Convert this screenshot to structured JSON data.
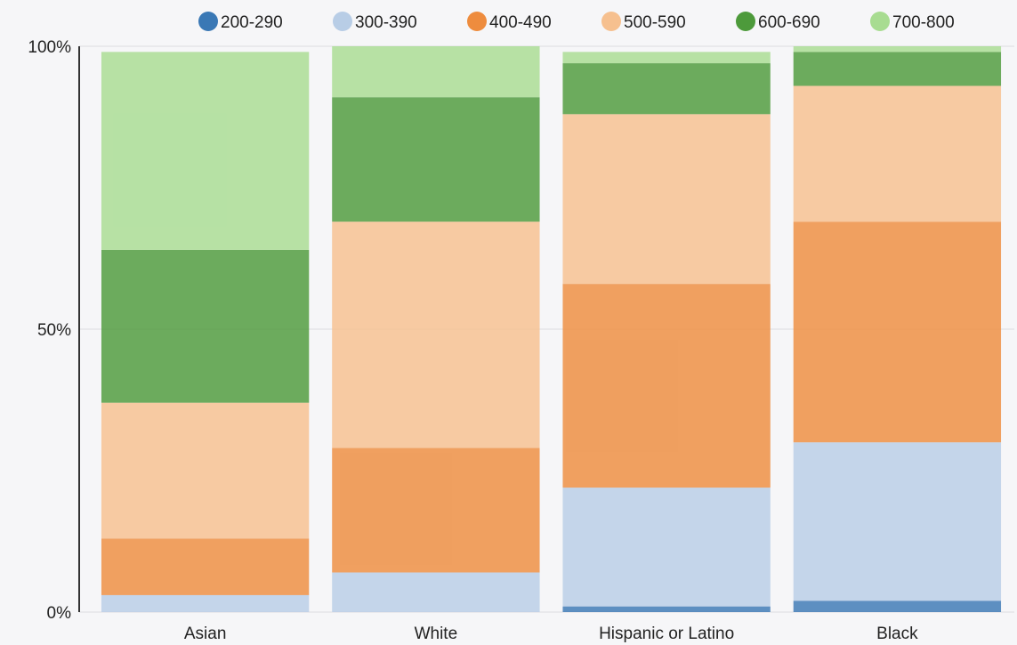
{
  "chart_data": {
    "type": "bar",
    "stacked": true,
    "normalized": true,
    "title": "",
    "xlabel": "",
    "ylabel": "",
    "ylim": [
      0,
      100
    ],
    "yticks": [
      "0%",
      "50%",
      "100%"
    ],
    "grid": true,
    "legend_position": "top",
    "categories": [
      "Asian",
      "White",
      "Hispanic or Latino",
      "Black"
    ],
    "series": [
      {
        "name": "200-290",
        "color": "#3a78b5",
        "values": [
          0,
          0,
          1,
          2
        ]
      },
      {
        "name": "300-390",
        "color": "#b8cde6",
        "values": [
          3,
          7,
          21,
          28
        ]
      },
      {
        "name": "400-490",
        "color": "#ee8c3e",
        "values": [
          10,
          22,
          36,
          39
        ]
      },
      {
        "name": "500-590",
        "color": "#f6c08f",
        "values": [
          24,
          40,
          30,
          24
        ]
      },
      {
        "name": "600-690",
        "color": "#4d9a3b",
        "values": [
          27,
          22,
          9,
          6
        ]
      },
      {
        "name": "700-800",
        "color": "#a8dc91",
        "values": [
          35,
          9,
          2,
          1
        ]
      }
    ]
  }
}
